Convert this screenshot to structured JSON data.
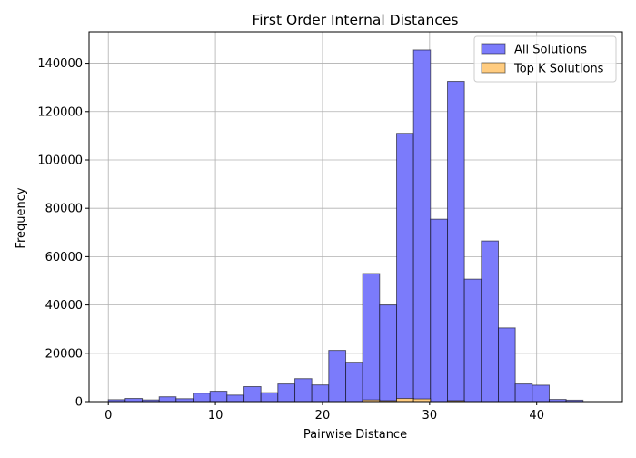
{
  "chart_data": {
    "type": "bar",
    "title": "First Order Internal Distances",
    "xlabel": "Pairwise Distance",
    "ylabel": "Frequency",
    "xlim": [
      -1.8,
      48
    ],
    "ylim": [
      0,
      153000
    ],
    "xticks": [
      0,
      10,
      20,
      30,
      40
    ],
    "yticks": [
      0,
      20000,
      40000,
      60000,
      80000,
      100000,
      120000,
      140000
    ],
    "grid": true,
    "legend_position": "top-right",
    "bin_edges": [
      0,
      1.58,
      3.17,
      4.75,
      6.33,
      7.92,
      9.5,
      11.08,
      12.67,
      14.25,
      15.83,
      17.42,
      19,
      20.58,
      22.17,
      23.75,
      25.33,
      26.92,
      28.5,
      30.08,
      31.67,
      33.25,
      34.83,
      36.42,
      38,
      39.58,
      41.17,
      42.75,
      44.33,
      45.92
    ],
    "series": [
      {
        "name": "All Solutions",
        "color": "#7b7bfb",
        "values": [
          800,
          1300,
          700,
          2000,
          1200,
          3500,
          4300,
          2700,
          6200,
          3700,
          7300,
          9500,
          6900,
          21200,
          16300,
          53000,
          40000,
          111000,
          145500,
          75500,
          132500,
          50700,
          66500,
          30500,
          7300,
          6800,
          900,
          600,
          0
        ]
      },
      {
        "name": "Top K Solutions",
        "color": "#ffcc80",
        "values": [
          0,
          0,
          0,
          0,
          0,
          0,
          0,
          0,
          0,
          0,
          0,
          0,
          0,
          0,
          0,
          700,
          400,
          1300,
          1100,
          0,
          400,
          0,
          0,
          0,
          0,
          0,
          0,
          0,
          0
        ]
      }
    ]
  }
}
